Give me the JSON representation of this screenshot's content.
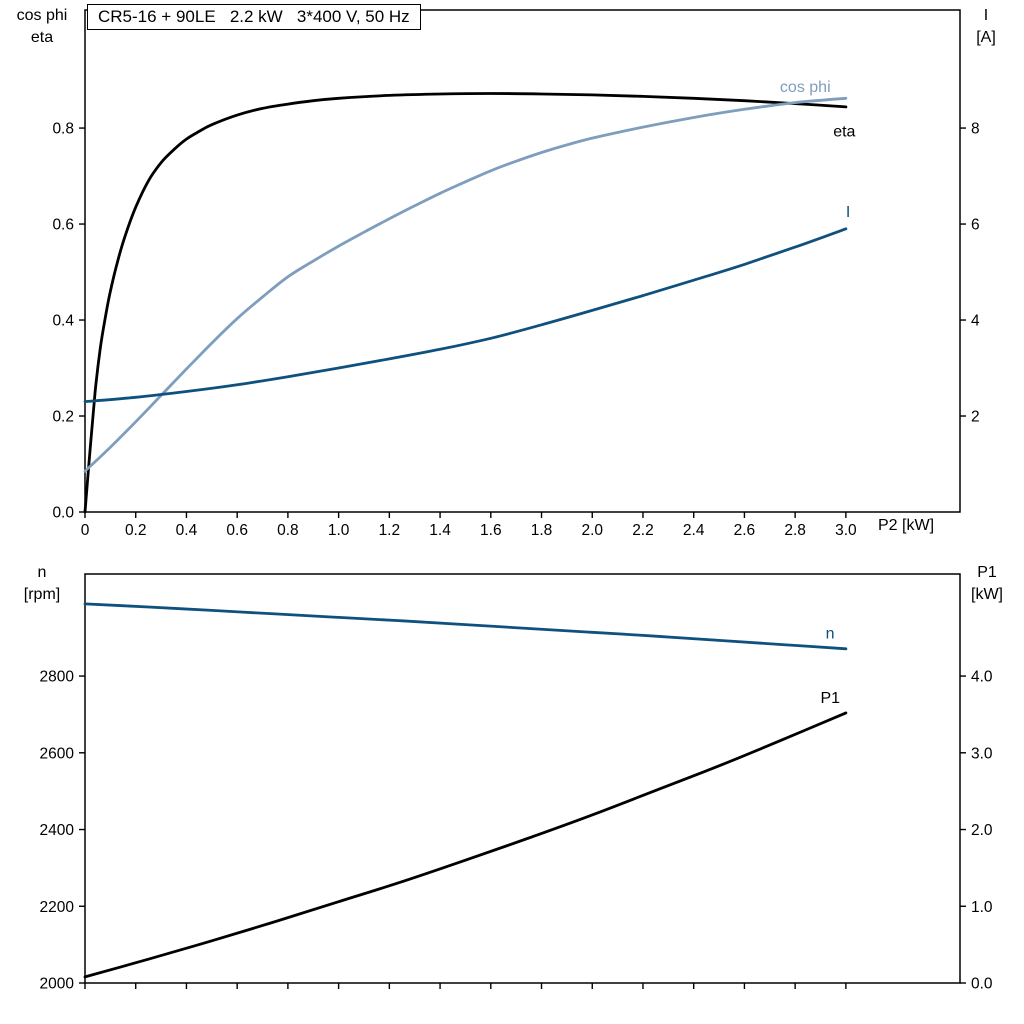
{
  "chart_title": "CR5-16 + 90LE   2.2 kW   3*400 V, 50 Hz",
  "colors": {
    "black": "#000000",
    "dark_blue": "#0f517e",
    "light_blue": "#7f9dbd",
    "frame": "#000000"
  },
  "chart_data": [
    {
      "type": "line",
      "title": "CR5-16 + 90LE   2.2 kW   3*400 V, 50 Hz",
      "x": {
        "label": "P2 [kW]",
        "min": 0,
        "max": 3.45,
        "ticks": [
          0,
          0.2,
          0.4,
          0.6,
          0.8,
          1.0,
          1.2,
          1.4,
          1.6,
          1.8,
          2.0,
          2.2,
          2.4,
          2.6,
          2.8,
          3.0
        ],
        "tick_labels": [
          "0",
          "0.2",
          "0.4",
          "0.6",
          "0.8",
          "1.0",
          "1.2",
          "1.4",
          "1.6",
          "1.8",
          "2.0",
          "2.2",
          "2.4",
          "2.6",
          "2.8",
          "3.0"
        ],
        "show_tick_labels": true
      },
      "left_axis": {
        "title_lines": [
          "cos phi",
          "eta"
        ],
        "min": 0,
        "max": 1.046,
        "ticks": [
          0,
          0.2,
          0.4,
          0.6,
          0.8
        ],
        "tick_labels": [
          "0.0",
          "0.2",
          "0.4",
          "0.6",
          "0.8"
        ]
      },
      "right_axis": {
        "title_lines": [
          "I",
          "[A]"
        ],
        "min": 0,
        "max": 10.46,
        "ticks": [
          2,
          4,
          6,
          8
        ],
        "tick_labels": [
          "2",
          "4",
          "6",
          "8"
        ]
      },
      "grid": false,
      "series": [
        {
          "name": "eta",
          "color_key": "black",
          "axis": "left",
          "points": [
            [
              0,
              0
            ],
            [
              0.02,
              0.13
            ],
            [
              0.04,
              0.25
            ],
            [
              0.06,
              0.34
            ],
            [
              0.08,
              0.405
            ],
            [
              0.1,
              0.46
            ],
            [
              0.13,
              0.525
            ],
            [
              0.16,
              0.578
            ],
            [
              0.2,
              0.635
            ],
            [
              0.25,
              0.69
            ],
            [
              0.3,
              0.728
            ],
            [
              0.35,
              0.755
            ],
            [
              0.4,
              0.777
            ],
            [
              0.45,
              0.793
            ],
            [
              0.5,
              0.807
            ],
            [
              0.6,
              0.827
            ],
            [
              0.7,
              0.841
            ],
            [
              0.8,
              0.85
            ],
            [
              0.9,
              0.857
            ],
            [
              1.0,
              0.862
            ],
            [
              1.2,
              0.868
            ],
            [
              1.4,
              0.871
            ],
            [
              1.6,
              0.872
            ],
            [
              1.8,
              0.871
            ],
            [
              2.0,
              0.869
            ],
            [
              2.2,
              0.866
            ],
            [
              2.4,
              0.862
            ],
            [
              2.6,
              0.857
            ],
            [
              2.8,
              0.851
            ],
            [
              3.0,
              0.844
            ]
          ]
        },
        {
          "name": "cos phi",
          "color_key": "light_blue",
          "axis": "left",
          "points": [
            [
              0,
              0.085
            ],
            [
              0.1,
              0.135
            ],
            [
              0.2,
              0.188
            ],
            [
              0.3,
              0.243
            ],
            [
              0.4,
              0.298
            ],
            [
              0.5,
              0.352
            ],
            [
              0.6,
              0.403
            ],
            [
              0.7,
              0.448
            ],
            [
              0.8,
              0.49
            ],
            [
              0.9,
              0.523
            ],
            [
              1.0,
              0.554
            ],
            [
              1.1,
              0.583
            ],
            [
              1.2,
              0.611
            ],
            [
              1.3,
              0.638
            ],
            [
              1.4,
              0.664
            ],
            [
              1.5,
              0.688
            ],
            [
              1.6,
              0.711
            ],
            [
              1.7,
              0.731
            ],
            [
              1.8,
              0.749
            ],
            [
              1.9,
              0.765
            ],
            [
              2.0,
              0.779
            ],
            [
              2.2,
              0.802
            ],
            [
              2.4,
              0.822
            ],
            [
              2.6,
              0.839
            ],
            [
              2.8,
              0.853
            ],
            [
              3.0,
              0.862
            ]
          ]
        },
        {
          "name": "I",
          "color_key": "dark_blue",
          "axis": "right",
          "points": [
            [
              0,
              2.3
            ],
            [
              0.2,
              2.39
            ],
            [
              0.4,
              2.51
            ],
            [
              0.6,
              2.65
            ],
            [
              0.8,
              2.82
            ],
            [
              1.0,
              3.0
            ],
            [
              1.2,
              3.19
            ],
            [
              1.4,
              3.39
            ],
            [
              1.6,
              3.62
            ],
            [
              1.8,
              3.9
            ],
            [
              2.0,
              4.2
            ],
            [
              2.2,
              4.51
            ],
            [
              2.4,
              4.83
            ],
            [
              2.6,
              5.16
            ],
            [
              2.8,
              5.52
            ],
            [
              3.0,
              5.9
            ]
          ]
        }
      ],
      "annotations": [
        {
          "text": "cos phi",
          "color_key": "light_blue",
          "axis": "left",
          "x": 2.74,
          "y": 0.875
        },
        {
          "text": "eta",
          "color_key": "black",
          "axis": "left",
          "x": 2.95,
          "y": 0.782
        },
        {
          "text": "I",
          "color_key": "dark_blue",
          "axis": "right",
          "x": 3.0,
          "y": 6.15
        }
      ]
    },
    {
      "type": "line",
      "x": {
        "label": "",
        "min": 0,
        "max": 3.45,
        "ticks": [
          0,
          0.2,
          0.4,
          0.6,
          0.8,
          1.0,
          1.2,
          1.4,
          1.6,
          1.8,
          2.0,
          2.2,
          2.4,
          2.6,
          2.8,
          3.0
        ],
        "tick_labels": [],
        "show_tick_labels": false
      },
      "left_axis": {
        "title_lines": [
          "n",
          "[rpm]"
        ],
        "min": 2000,
        "max": 3066,
        "ticks": [
          2000,
          2200,
          2400,
          2600,
          2800
        ],
        "tick_labels": [
          "2000",
          "2200",
          "2400",
          "2600",
          "2800"
        ]
      },
      "right_axis": {
        "title_lines": [
          "P1",
          "[kW]"
        ],
        "min": 0,
        "max": 5.33,
        "ticks": [
          0,
          1,
          2,
          3,
          4
        ],
        "tick_labels": [
          "0.0",
          "1.0",
          "2.0",
          "3.0",
          "4.0"
        ]
      },
      "grid": false,
      "series": [
        {
          "name": "n",
          "color_key": "dark_blue",
          "axis": "left",
          "points": [
            [
              0,
              2988
            ],
            [
              0.25,
              2980
            ],
            [
              0.5,
              2971
            ],
            [
              0.75,
              2962
            ],
            [
              1.0,
              2953
            ],
            [
              1.25,
              2944
            ],
            [
              1.5,
              2934
            ],
            [
              1.75,
              2924
            ],
            [
              2.0,
              2914
            ],
            [
              2.25,
              2904
            ],
            [
              2.5,
              2893
            ],
            [
              2.75,
              2882
            ],
            [
              3.0,
              2871
            ]
          ]
        },
        {
          "name": "P1",
          "color_key": "black",
          "axis": "right",
          "points": [
            [
              0,
              0.08
            ],
            [
              0.25,
              0.31
            ],
            [
              0.5,
              0.55
            ],
            [
              0.75,
              0.8
            ],
            [
              1.0,
              1.06
            ],
            [
              1.25,
              1.32
            ],
            [
              1.5,
              1.6
            ],
            [
              1.75,
              1.89
            ],
            [
              2.0,
              2.19
            ],
            [
              2.25,
              2.51
            ],
            [
              2.5,
              2.83
            ],
            [
              2.75,
              3.17
            ],
            [
              3.0,
              3.52
            ]
          ]
        }
      ],
      "annotations": [
        {
          "text": "n",
          "color_key": "dark_blue",
          "axis": "left",
          "x": 2.92,
          "y": 2898
        },
        {
          "text": "P1",
          "color_key": "black",
          "axis": "right",
          "x": 2.9,
          "y": 3.65
        }
      ]
    }
  ]
}
